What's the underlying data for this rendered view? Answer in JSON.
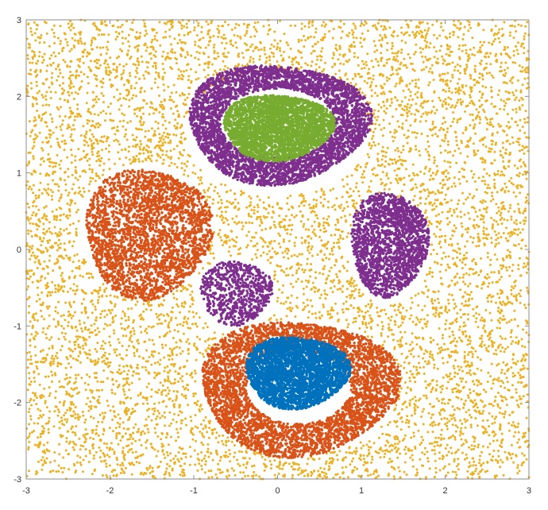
{
  "chart_data": {
    "type": "scatter",
    "title": "",
    "xlabel": "",
    "ylabel": "",
    "xlim": [
      -3,
      3
    ],
    "ylim": [
      -3,
      3
    ],
    "grid": false,
    "legend": "none",
    "x_ticks": [
      -3,
      -2,
      -1,
      0,
      1,
      2,
      3
    ],
    "y_ticks": [
      -3,
      -2,
      -1,
      0,
      1,
      2,
      3
    ],
    "x_tick_labels": [
      "-3",
      "-2",
      "-1",
      "0",
      "1",
      "2",
      "3"
    ],
    "y_tick_labels": [
      "-3",
      "-2",
      "-1",
      "0",
      "1",
      "2",
      "3"
    ],
    "series": [
      {
        "color": "#EDB120",
        "description": "uniform background noise points across full domain",
        "x_range": [
          -3,
          3
        ],
        "y_range": [
          -3,
          3
        ],
        "count": 7000,
        "excluded_regions": [
          {
            "cx": 0.0,
            "cy": 1.5,
            "rx": 1.1,
            "ry": 0.8
          },
          {
            "cx": -1.6,
            "cy": 0.25,
            "rx": 0.78,
            "ry": 0.88
          },
          {
            "cx": 1.33,
            "cy": 0.0,
            "rx": 0.5,
            "ry": 0.7
          },
          {
            "cx": -0.5,
            "cy": -0.6,
            "rx": 0.5,
            "ry": 0.5
          },
          {
            "cx": 0.25,
            "cy": -1.8,
            "rx": 1.2,
            "ry": 0.9
          }
        ]
      },
      {
        "color": "#7E2F8E",
        "description": "upper ring around green core",
        "shape": "ring",
        "cx": 0.0,
        "cy": 1.65,
        "rx_outer": 1.08,
        "ry_outer": 0.78,
        "rx_inner": 0.68,
        "ry_inner": 0.45,
        "count": 3600
      },
      {
        "color": "#77AC30",
        "description": "upper core ellipse",
        "shape": "ellipse",
        "cx": 0.0,
        "cy": 1.6,
        "rx": 0.66,
        "ry": 0.43,
        "count": 3000
      },
      {
        "color": "#7E2F8E",
        "description": "right lobe",
        "shape": "ellipse",
        "cx": 1.33,
        "cy": 0.08,
        "rx": 0.46,
        "ry": 0.68,
        "count": 1800
      },
      {
        "color": "#7E2F8E",
        "description": "small center-left lobe",
        "shape": "ellipse",
        "cx": -0.5,
        "cy": -0.56,
        "rx": 0.43,
        "ry": 0.42,
        "count": 700
      },
      {
        "color": "#D95319",
        "description": "left blob",
        "shape": "ellipse",
        "cx": -1.55,
        "cy": 0.22,
        "rx": 0.75,
        "ry": 0.85,
        "count": 2600
      },
      {
        "color": "#D95319",
        "description": "lower ring around blue core",
        "shape": "ring",
        "cx": 0.25,
        "cy": -1.8,
        "rx_outer": 1.18,
        "ry_outer": 0.88,
        "rx_inner": 0.62,
        "ry_inner": 0.48,
        "count": 3800
      },
      {
        "color": "#0072BD",
        "description": "lower core ellipse",
        "shape": "ellipse",
        "cx": 0.23,
        "cy": -1.6,
        "rx": 0.62,
        "ry": 0.47,
        "count": 3000
      }
    ]
  }
}
